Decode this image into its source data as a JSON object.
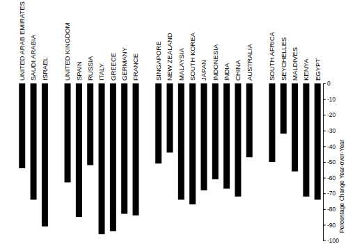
{
  "chart_data": {
    "type": "bar",
    "categories": [
      "UNITED ARAB EMIRATES",
      "SAUDI ARABIA",
      "ISRAEL",
      null,
      "UNITED KINGDOM",
      "SPAIN",
      "RUSSIA",
      "ITALY",
      "GREECE",
      "GERMANY",
      "FRANCE",
      null,
      "SINGAPORE",
      "NEW ZEALAND",
      "MALAYSIA",
      "SOUTH KOREA",
      "JAPAN",
      "INDONESIA",
      "INDIA",
      "CHINA",
      "AUSTRALIA",
      null,
      "SOUTH AFRICA",
      "SEYCHELLES",
      "MALDIVES",
      "KENYA",
      "EGYPT"
    ],
    "values": [
      -54,
      -74,
      -91,
      null,
      -63,
      -85,
      -52,
      -96,
      -94,
      -83,
      -84,
      null,
      -51,
      -44,
      -74,
      -77,
      -68,
      -61,
      -67,
      -72,
      -47,
      null,
      -50,
      -32,
      -56,
      -72,
      -74
    ],
    "color": "#000000",
    "y_label": "Percentage Change Year-over-Year",
    "ylim": [
      -100,
      0
    ],
    "yticks": [
      0,
      -10,
      -20,
      -30,
      -40,
      -50,
      -60,
      -70,
      -80,
      -90,
      -100
    ],
    "grid": false
  }
}
